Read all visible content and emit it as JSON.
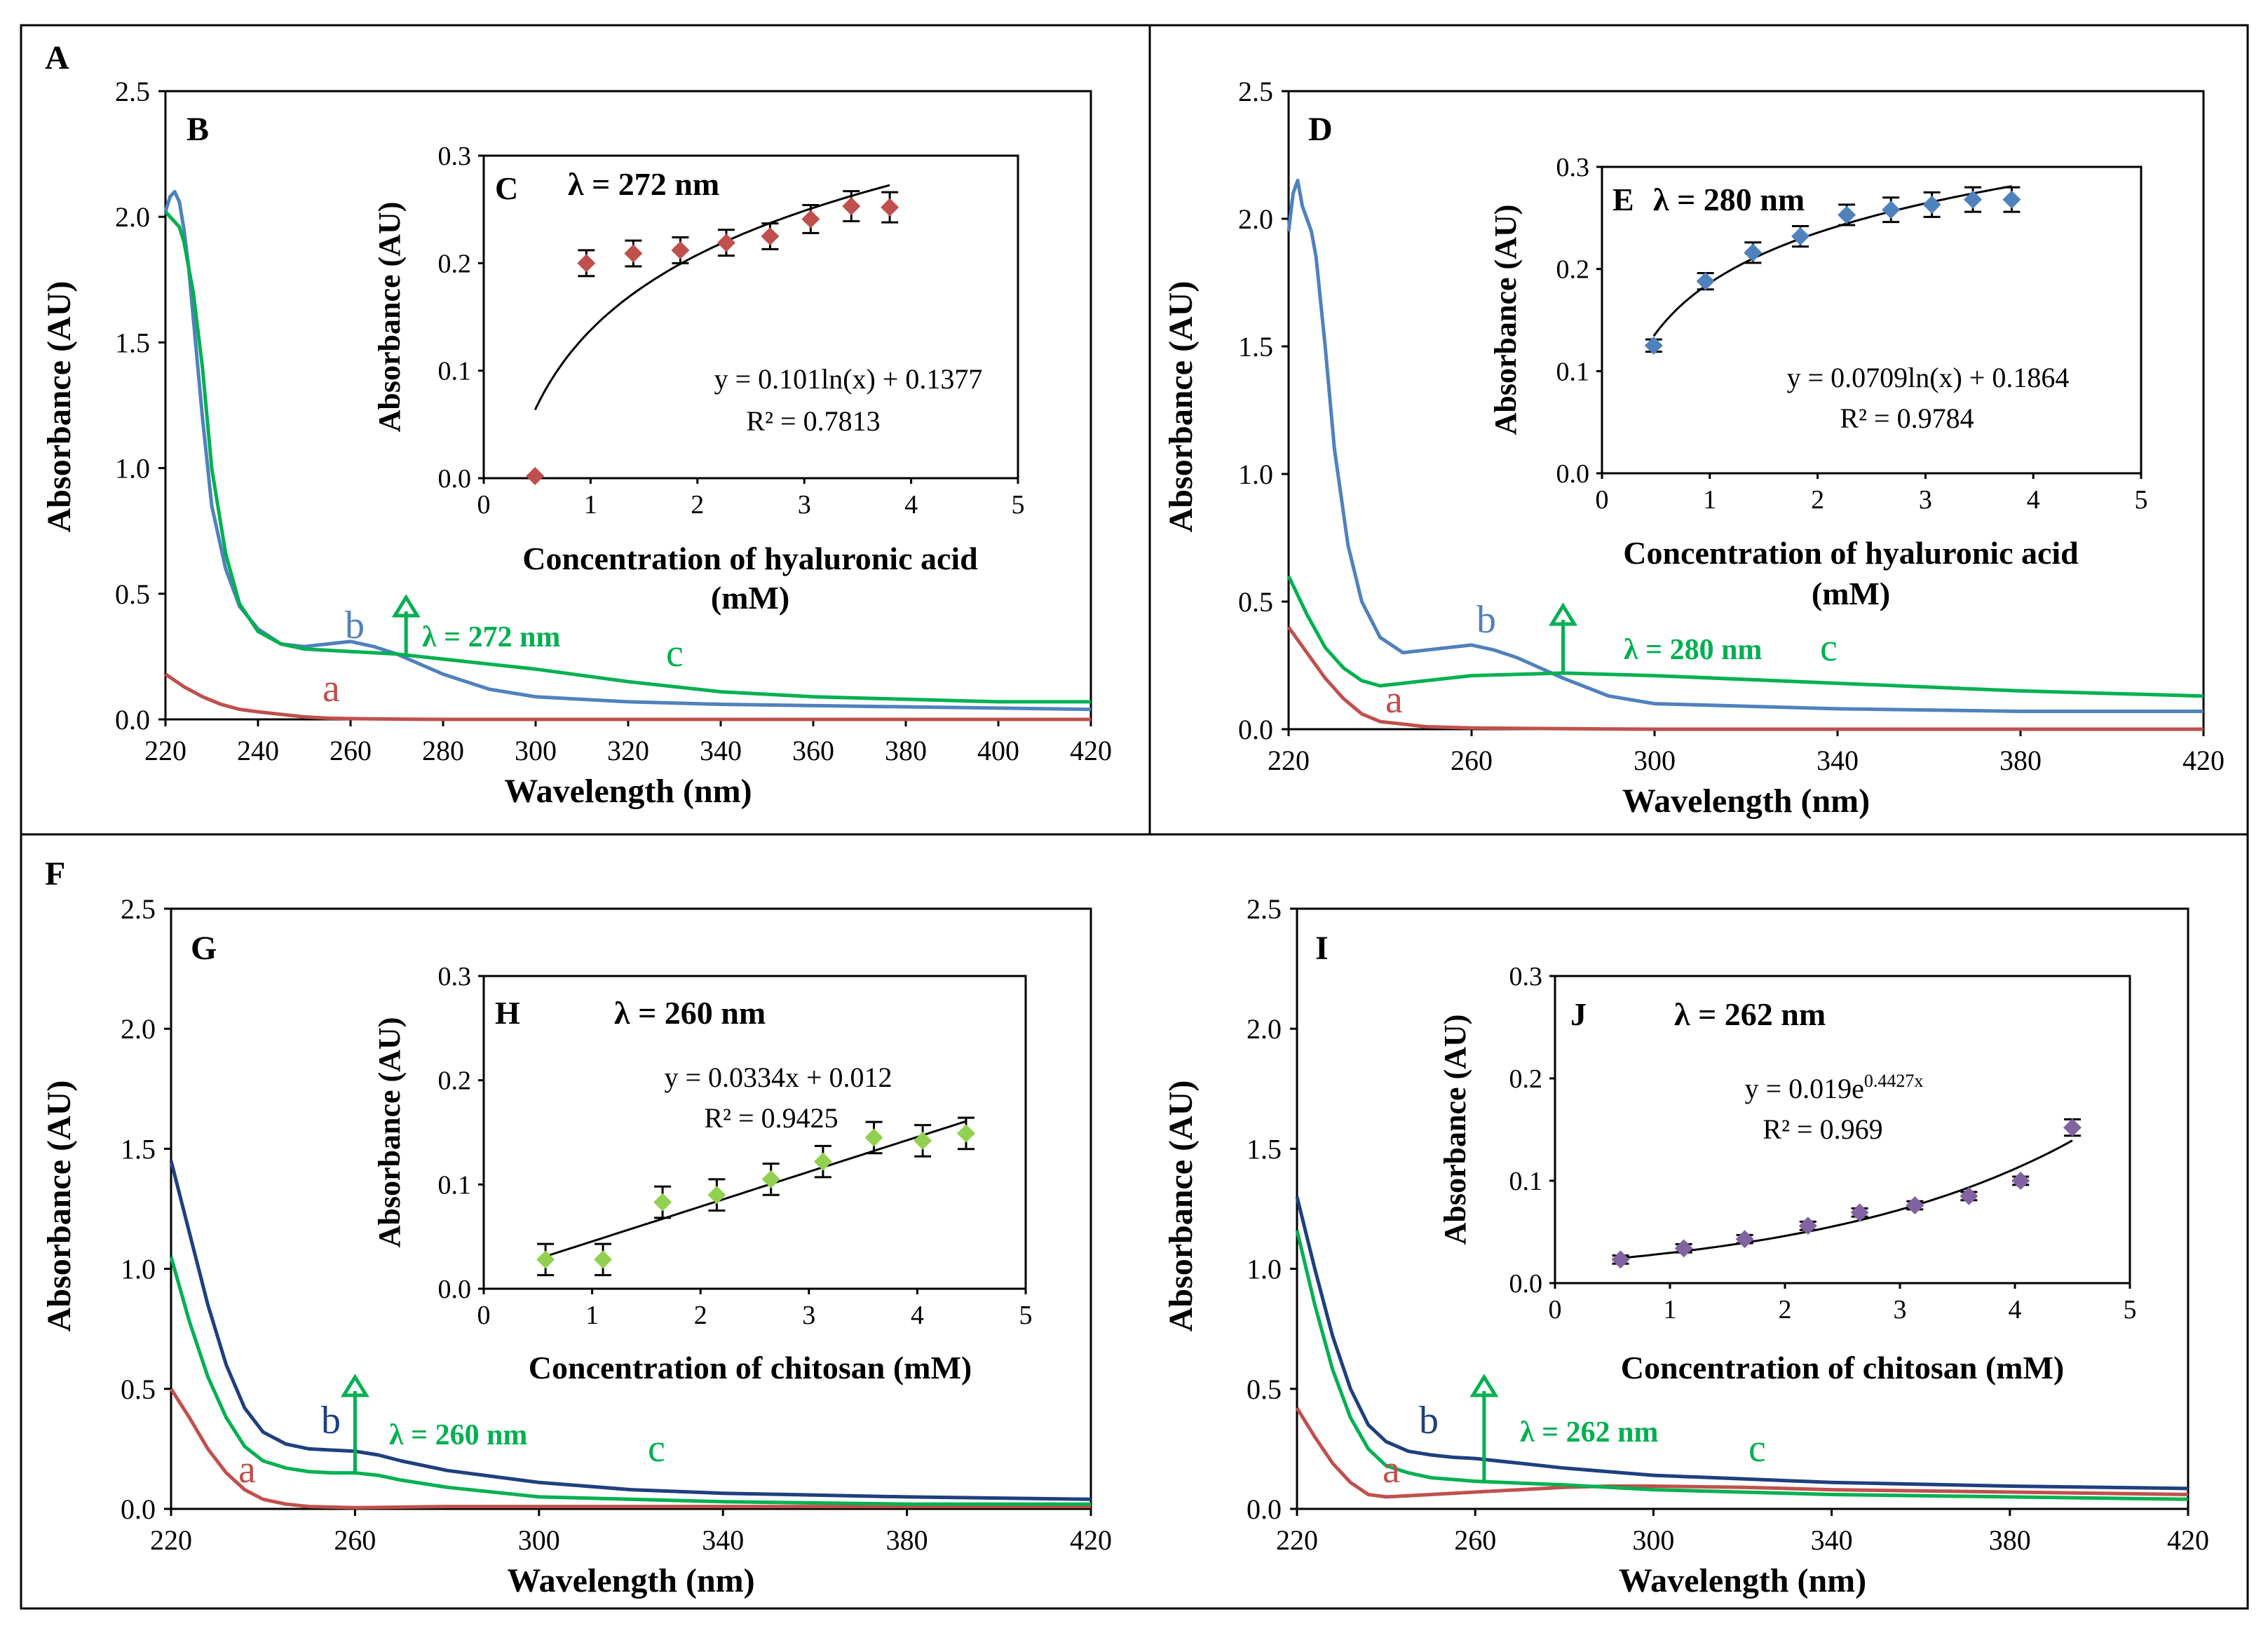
{
  "chart_data": [
    {
      "id": "A",
      "letter": "A",
      "plot_letter": "B",
      "type": "line",
      "xlabel": "Wavelength  (nm)",
      "ylabel": "Absorbance (AU)",
      "xlim": [
        220,
        420
      ],
      "ylim": [
        0,
        2.5
      ],
      "xticks": [
        "220",
        "240",
        "260",
        "280",
        "300",
        "320",
        "340",
        "360",
        "380",
        "400",
        "420"
      ],
      "yticks": [
        "0.0",
        "0.5",
        "1.0",
        "1.5",
        "2.0",
        "2.5"
      ],
      "lambda_label": "λ = 272 nm",
      "lambda_x": 272,
      "series": [
        {
          "name": "a",
          "color": "#c0504d",
          "x": [
            220,
            224,
            228,
            232,
            236,
            240,
            245,
            250,
            255,
            260,
            270,
            280,
            300,
            340,
            420
          ],
          "y": [
            0.18,
            0.13,
            0.09,
            0.06,
            0.04,
            0.03,
            0.02,
            0.01,
            0.005,
            0.003,
            0.001,
            0,
            0,
            0,
            0
          ]
        },
        {
          "name": "b",
          "color": "#4f81bd",
          "x": [
            220,
            221,
            222,
            223,
            224,
            225,
            226,
            228,
            230,
            233,
            236,
            240,
            245,
            250,
            255,
            260,
            265,
            270,
            275,
            280,
            290,
            300,
            320,
            340,
            380,
            420
          ],
          "y": [
            2.02,
            2.08,
            2.1,
            2.06,
            1.95,
            1.8,
            1.6,
            1.2,
            0.85,
            0.6,
            0.45,
            0.36,
            0.3,
            0.29,
            0.3,
            0.31,
            0.29,
            0.26,
            0.22,
            0.18,
            0.12,
            0.09,
            0.07,
            0.06,
            0.05,
            0.04
          ]
        },
        {
          "name": "c",
          "color": "#00b050",
          "x": [
            220,
            221,
            222,
            223,
            224,
            226,
            228,
            230,
            233,
            236,
            240,
            245,
            250,
            260,
            270,
            280,
            290,
            300,
            320,
            340,
            360,
            380,
            400,
            420
          ],
          "y": [
            2.02,
            2.0,
            1.98,
            1.96,
            1.9,
            1.7,
            1.4,
            1.0,
            0.66,
            0.46,
            0.35,
            0.3,
            0.28,
            0.27,
            0.26,
            0.24,
            0.22,
            0.2,
            0.15,
            0.11,
            0.09,
            0.08,
            0.07,
            0.07
          ]
        }
      ],
      "inset": {
        "letter": "C",
        "lambda_text": "λ = 272 nm",
        "xlabel": "Concentration of hyaluronic acid",
        "xlabel2": "(mM)",
        "ylabel": "Absorbance (AU)",
        "xlim": [
          0,
          5
        ],
        "ylim": [
          0,
          0.3
        ],
        "xticks": [
          "0",
          "1",
          "2",
          "3",
          "4",
          "5"
        ],
        "yticks": [
          "0.0",
          "0.1",
          "0.2",
          "0.3"
        ],
        "equation": "y = 0.101ln(x) + 0.1377",
        "r2": "R² = 0.7813",
        "marker_color": "#c0504d",
        "points_x": [
          0.48,
          0.96,
          1.4,
          1.84,
          2.27,
          2.68,
          3.06,
          3.44,
          3.8
        ],
        "points_y": [
          0.002,
          0.2,
          0.209,
          0.212,
          0.219,
          0.225,
          0.241,
          0.253,
          0.252
        ],
        "errors": [
          0,
          0.012,
          0.012,
          0.012,
          0.012,
          0.012,
          0.013,
          0.014,
          0.014
        ],
        "fit": {
          "kind": "log",
          "a": 0.101,
          "b": 0.1377,
          "x0": 0.48,
          "x1": 3.8
        }
      }
    },
    {
      "id": "D",
      "letter": "",
      "plot_letter": "D",
      "type": "line",
      "xlabel": "Wavelength  (nm)",
      "ylabel": "Absorbance (AU)",
      "xlim": [
        220,
        420
      ],
      "ylim": [
        0,
        2.5
      ],
      "xticks": [
        "220",
        "260",
        "300",
        "340",
        "380",
        "420"
      ],
      "yticks": [
        "0.0",
        "0.5",
        "1.0",
        "1.5",
        "2.0",
        "2.5"
      ],
      "lambda_label": "λ = 280 nm",
      "lambda_x": 280,
      "series": [
        {
          "name": "a",
          "color": "#c0504d",
          "x": [
            220,
            224,
            228,
            232,
            236,
            240,
            245,
            250,
            260,
            280,
            300,
            340,
            420
          ],
          "y": [
            0.4,
            0.3,
            0.2,
            0.12,
            0.06,
            0.03,
            0.02,
            0.01,
            0.005,
            0.002,
            0,
            0,
            0
          ]
        },
        {
          "name": "b",
          "color": "#4f81bd",
          "x": [
            220,
            221,
            222,
            223,
            224,
            225,
            226,
            228,
            230,
            233,
            236,
            240,
            245,
            250,
            255,
            260,
            265,
            270,
            280,
            290,
            300,
            320,
            340,
            380,
            420
          ],
          "y": [
            1.95,
            2.1,
            2.15,
            2.05,
            2.0,
            1.95,
            1.85,
            1.5,
            1.1,
            0.72,
            0.5,
            0.36,
            0.3,
            0.31,
            0.32,
            0.33,
            0.31,
            0.28,
            0.2,
            0.13,
            0.1,
            0.09,
            0.08,
            0.07,
            0.07
          ]
        },
        {
          "name": "c",
          "color": "#00b050",
          "x": [
            220,
            224,
            228,
            232,
            236,
            240,
            250,
            260,
            270,
            280,
            300,
            340,
            380,
            420
          ],
          "y": [
            0.6,
            0.45,
            0.32,
            0.24,
            0.19,
            0.17,
            0.19,
            0.21,
            0.215,
            0.22,
            0.21,
            0.18,
            0.15,
            0.13
          ]
        }
      ],
      "inset": {
        "letter": "E",
        "lambda_text": "λ = 280 nm",
        "xlabel": "Concentration of hyaluronic acid",
        "xlabel2": "(mM)",
        "ylabel": "Absorbance (AU)",
        "xlim": [
          0,
          5
        ],
        "ylim": [
          0,
          0.3
        ],
        "xticks": [
          "0",
          "1",
          "2",
          "3",
          "4",
          "5"
        ],
        "yticks": [
          "0.0",
          "0.1",
          "0.2",
          "0.3"
        ],
        "equation": "y = 0.0709ln(x) + 0.1864",
        "r2": "R² = 0.9784",
        "marker_color": "#4f81bd",
        "points_x": [
          0.48,
          0.96,
          1.4,
          1.84,
          2.27,
          2.68,
          3.06,
          3.44,
          3.8
        ],
        "points_y": [
          0.125,
          0.188,
          0.216,
          0.232,
          0.253,
          0.258,
          0.263,
          0.268,
          0.268
        ],
        "errors": [
          0.006,
          0.008,
          0.01,
          0.01,
          0.01,
          0.012,
          0.012,
          0.012,
          0.012
        ],
        "fit": {
          "kind": "log",
          "a": 0.0709,
          "b": 0.1864,
          "x0": 0.48,
          "x1": 3.8
        }
      }
    },
    {
      "id": "F",
      "letter": "F",
      "plot_letter": "G",
      "type": "line",
      "xlabel": "Wavelength  (nm)",
      "ylabel": "Absorbance (AU)",
      "xlim": [
        220,
        420
      ],
      "ylim": [
        0,
        2.5
      ],
      "xticks": [
        "220",
        "260",
        "300",
        "340",
        "380",
        "420"
      ],
      "yticks": [
        "0.0",
        "0.5",
        "1.0",
        "1.5",
        "2.0",
        "2.5"
      ],
      "lambda_label": "λ = 260 nm",
      "lambda_x": 260,
      "series": [
        {
          "name": "a",
          "color": "#c0504d",
          "x": [
            220,
            224,
            228,
            232,
            236,
            240,
            245,
            250,
            260,
            280,
            300,
            340,
            420
          ],
          "y": [
            0.5,
            0.38,
            0.25,
            0.15,
            0.08,
            0.04,
            0.02,
            0.01,
            0.005,
            0.01,
            0.01,
            0.01,
            0.01
          ]
        },
        {
          "name": "b",
          "color": "#1f3f7f",
          "x": [
            220,
            224,
            228,
            232,
            236,
            240,
            245,
            250,
            255,
            260,
            265,
            270,
            280,
            300,
            320,
            340,
            380,
            420
          ],
          "y": [
            1.45,
            1.15,
            0.85,
            0.6,
            0.42,
            0.32,
            0.27,
            0.25,
            0.245,
            0.24,
            0.225,
            0.2,
            0.16,
            0.11,
            0.08,
            0.065,
            0.05,
            0.04
          ]
        },
        {
          "name": "c",
          "color": "#00b050",
          "x": [
            220,
            224,
            228,
            232,
            236,
            240,
            245,
            250,
            255,
            260,
            265,
            270,
            280,
            300,
            340,
            380,
            420
          ],
          "y": [
            1.05,
            0.78,
            0.55,
            0.38,
            0.26,
            0.2,
            0.17,
            0.155,
            0.15,
            0.15,
            0.14,
            0.12,
            0.09,
            0.05,
            0.03,
            0.02,
            0.02
          ]
        }
      ],
      "inset": {
        "letter": "H",
        "lambda_text": "λ = 260 nm",
        "xlabel": "Concentration of chitosan (mM)",
        "xlabel2": "",
        "ylabel": "Absorbance (AU)",
        "xlim": [
          0,
          5
        ],
        "ylim": [
          0,
          0.3
        ],
        "xticks": [
          "0",
          "1",
          "2",
          "3",
          "4",
          "5"
        ],
        "yticks": [
          "0.0",
          "0.1",
          "0.2",
          "0.3"
        ],
        "equation": "y = 0.0334x + 0.012",
        "r2": "R² = 0.9425",
        "marker_color": "#92d050",
        "points_x": [
          0.57,
          1.1,
          1.65,
          2.15,
          2.65,
          3.13,
          3.6,
          4.05,
          4.45
        ],
        "points_y": [
          0.028,
          0.028,
          0.083,
          0.09,
          0.105,
          0.122,
          0.145,
          0.142,
          0.149
        ],
        "errors": [
          0.015,
          0.015,
          0.015,
          0.015,
          0.015,
          0.015,
          0.015,
          0.015,
          0.015
        ],
        "fit": {
          "kind": "linear",
          "a": 0.0334,
          "b": 0.012,
          "x0": 0.57,
          "x1": 4.45
        }
      }
    },
    {
      "id": "I",
      "letter": "",
      "plot_letter": "I",
      "type": "line",
      "xlabel": "Wavelength  (nm)",
      "ylabel": "Absorbance (AU)",
      "xlim": [
        220,
        420
      ],
      "ylim": [
        0,
        2.5
      ],
      "xticks": [
        "220",
        "260",
        "300",
        "340",
        "380",
        "420"
      ],
      "yticks": [
        "0.0",
        "0.5",
        "1.0",
        "1.5",
        "2.0",
        "2.5"
      ],
      "lambda_label": "λ = 262 nm",
      "lambda_x": 262,
      "series": [
        {
          "name": "a",
          "color": "#c0504d",
          "x": [
            220,
            224,
            228,
            232,
            236,
            240,
            245,
            250,
            260,
            270,
            280,
            290,
            300,
            320,
            340,
            380,
            420
          ],
          "y": [
            0.42,
            0.3,
            0.19,
            0.11,
            0.06,
            0.05,
            0.055,
            0.06,
            0.07,
            0.08,
            0.09,
            0.095,
            0.095,
            0.09,
            0.08,
            0.07,
            0.06
          ]
        },
        {
          "name": "b",
          "color": "#1f3f7f",
          "x": [
            220,
            224,
            228,
            232,
            236,
            240,
            245,
            250,
            255,
            260,
            270,
            280,
            300,
            340,
            380,
            420
          ],
          "y": [
            1.3,
            1.0,
            0.72,
            0.5,
            0.35,
            0.28,
            0.24,
            0.225,
            0.215,
            0.21,
            0.19,
            0.17,
            0.14,
            0.11,
            0.095,
            0.085
          ]
        },
        {
          "name": "c",
          "color": "#00b050",
          "x": [
            220,
            224,
            228,
            232,
            236,
            240,
            245,
            250,
            260,
            280,
            300,
            340,
            380,
            420
          ],
          "y": [
            1.16,
            0.85,
            0.58,
            0.38,
            0.25,
            0.18,
            0.15,
            0.13,
            0.115,
            0.1,
            0.08,
            0.06,
            0.05,
            0.04
          ]
        }
      ],
      "inset": {
        "letter": "J",
        "lambda_text": "λ = 262 nm",
        "xlabel": "Concentration of chitosan (mM)",
        "xlabel2": "",
        "ylabel": "Absorbance (AU)",
        "xlim": [
          0,
          5
        ],
        "ylim": [
          0,
          0.3
        ],
        "xticks": [
          "0",
          "1",
          "2",
          "3",
          "4",
          "5"
        ],
        "yticks": [
          "0.0",
          "0.1",
          "0.2",
          "0.3"
        ],
        "equation_base": "y = 0.019e",
        "equation_exp": "0.4427x",
        "r2": "R² = 0.969",
        "marker_color": "#8064a2",
        "points_x": [
          0.57,
          1.12,
          1.65,
          2.2,
          2.65,
          3.13,
          3.6,
          4.05,
          4.5
        ],
        "points_y": [
          0.023,
          0.034,
          0.043,
          0.056,
          0.069,
          0.076,
          0.085,
          0.1,
          0.152
        ],
        "errors": [
          0.004,
          0.004,
          0.004,
          0.004,
          0.004,
          0.004,
          0.004,
          0.004,
          0.008
        ],
        "fit": {
          "kind": "exp",
          "a": 0.019,
          "b": 0.4427,
          "x0": 0.57,
          "x1": 4.5
        }
      }
    }
  ]
}
